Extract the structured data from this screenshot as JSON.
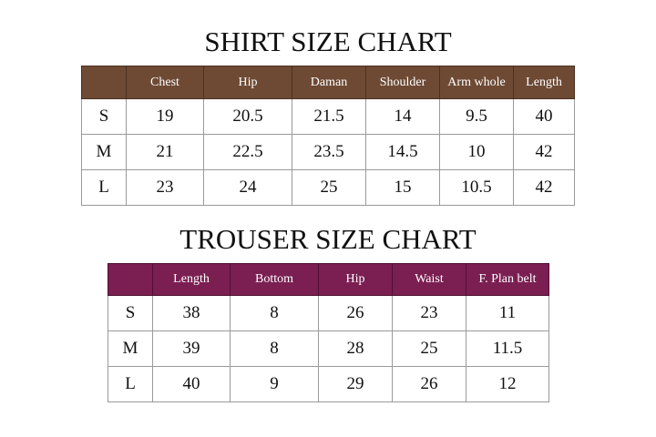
{
  "shirt": {
    "title": "SHIRT SIZE CHART",
    "header_color": "#6e4a35",
    "columns": [
      "",
      "Chest",
      "Hip",
      "Daman",
      "Shoulder",
      "Arm whole",
      "Length"
    ],
    "rows": [
      [
        "S",
        "19",
        "20.5",
        "21.5",
        "14",
        "9.5",
        "40"
      ],
      [
        "M",
        "21",
        "22.5",
        "23.5",
        "14.5",
        "10",
        "42"
      ],
      [
        "L",
        "23",
        "24",
        "25",
        "15",
        "10.5",
        "42"
      ]
    ]
  },
  "trouser": {
    "title": "TROUSER SIZE CHART",
    "header_color": "#7b1f52",
    "columns": [
      "",
      "Length",
      "Bottom",
      "Hip",
      "Waist",
      "F. Plan belt"
    ],
    "rows": [
      [
        "S",
        "38",
        "8",
        "26",
        "23",
        "11"
      ],
      [
        "M",
        "39",
        "8",
        "28",
        "25",
        "11.5"
      ],
      [
        "L",
        "40",
        "9",
        "29",
        "26",
        "12"
      ]
    ]
  }
}
